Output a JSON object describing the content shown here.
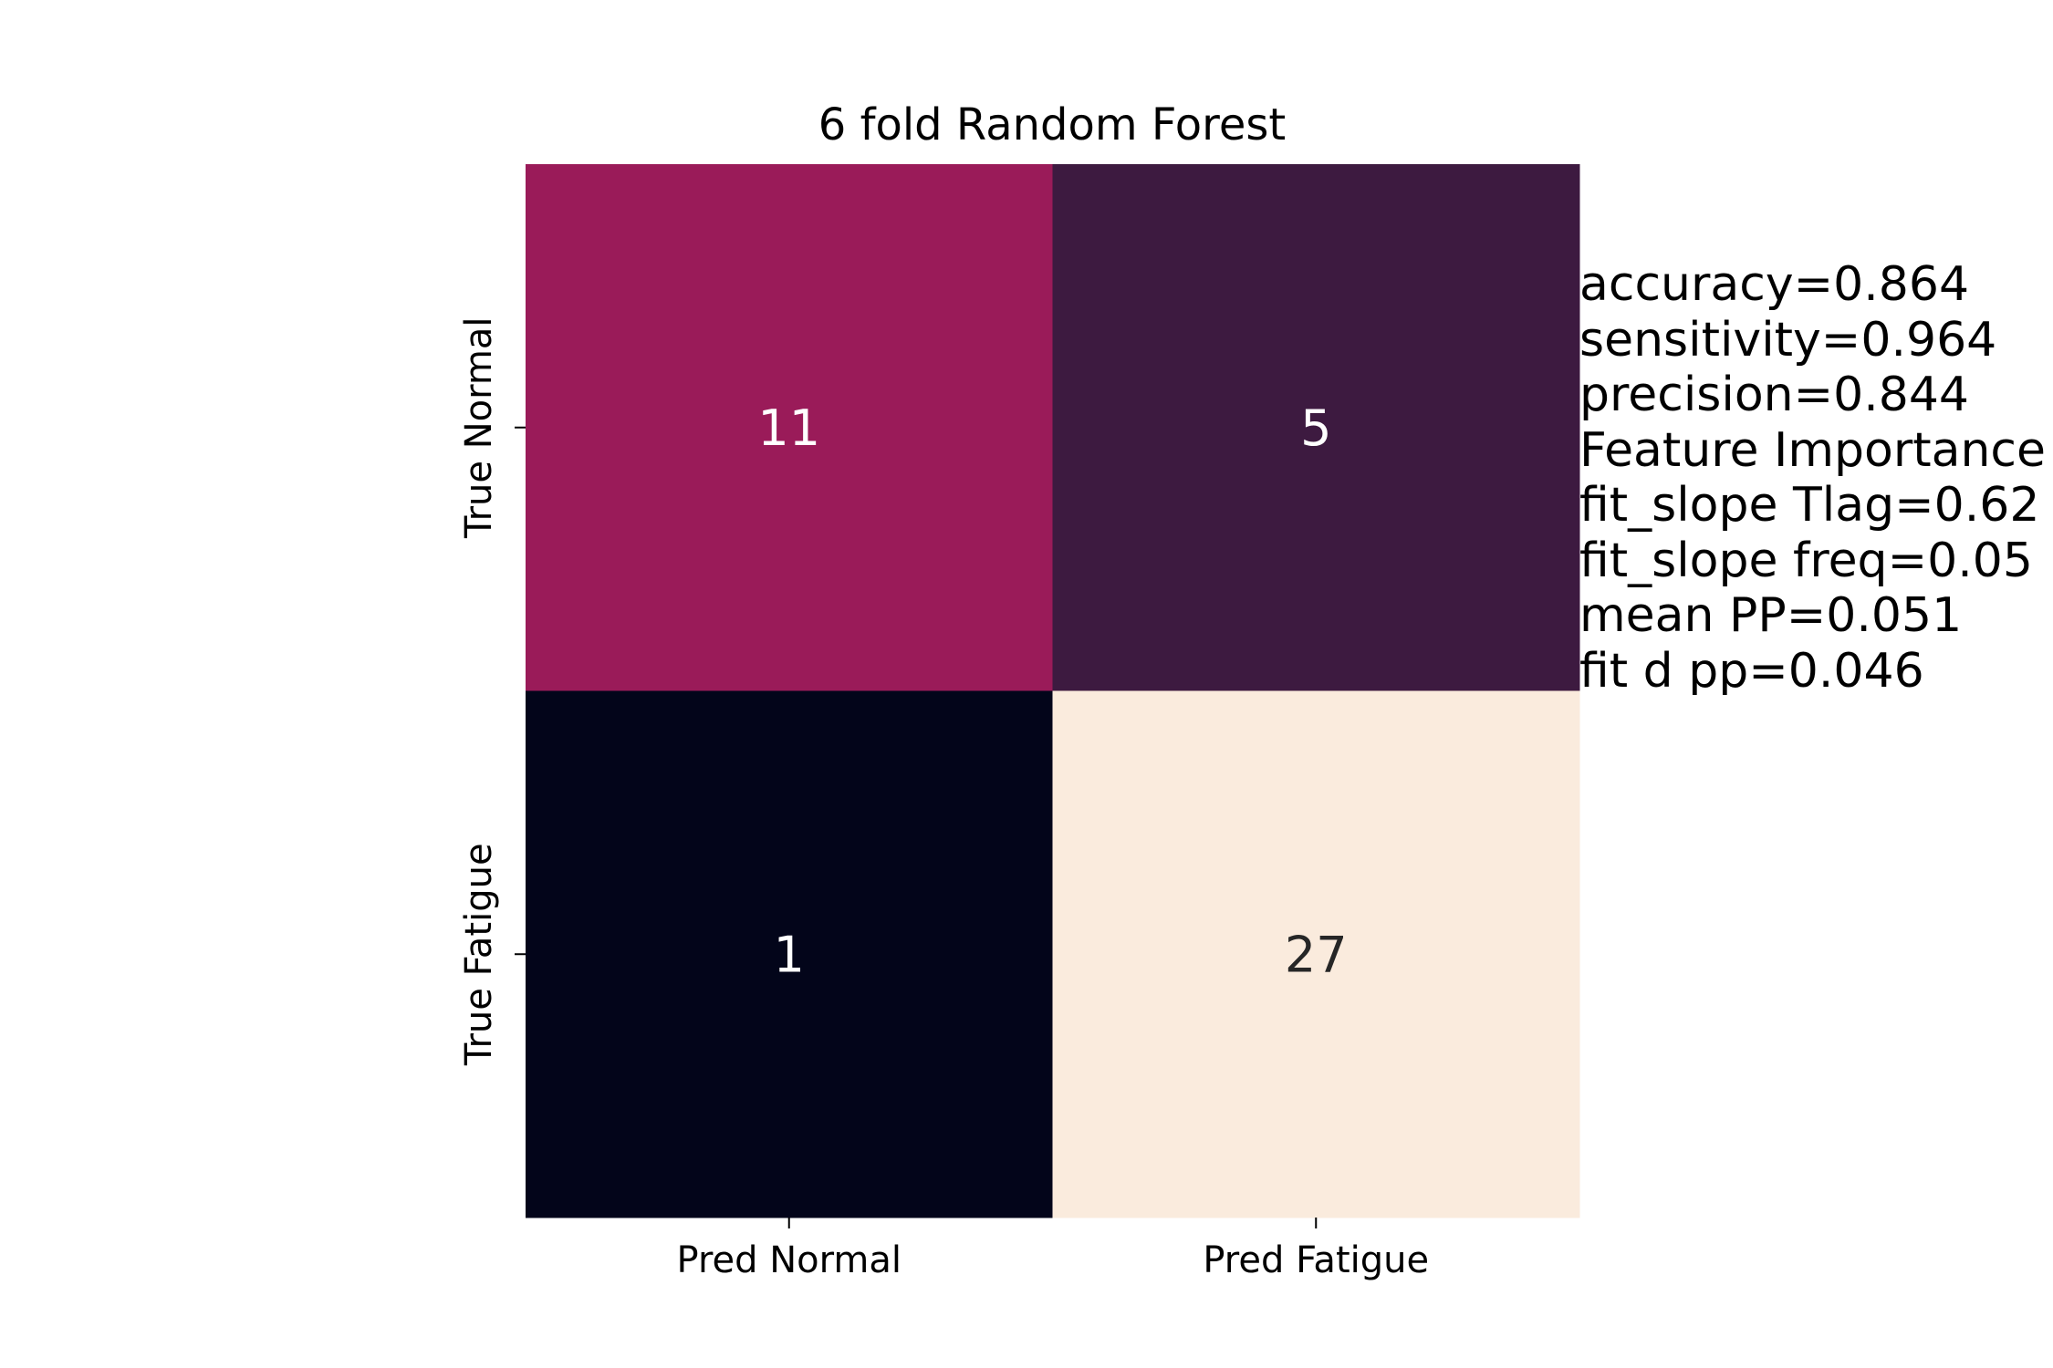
{
  "chart_data": {
    "type": "heatmap",
    "title": "6 fold Random Forest",
    "row_labels": [
      "True Normal",
      "True Fatigue"
    ],
    "col_labels": [
      "Pred Normal",
      "Pred Fatigue"
    ],
    "values": [
      [
        11,
        5
      ],
      [
        1,
        27
      ]
    ],
    "cell_colors": [
      [
        "#9a1b59",
        "#3d1a40"
      ],
      [
        "#03051a",
        "#faebdd"
      ]
    ],
    "text_colors": [
      [
        "#ffffff",
        "#ffffff"
      ],
      [
        "#ffffff",
        "#262626"
      ]
    ],
    "colorbar": false
  },
  "annotation": {
    "lines": [
      "accuracy=0.864",
      "sensitivity=0.964",
      "precision=0.844",
      "Feature Importance",
      "fit_slope Tlag=0.62",
      "fit_slope freq=0.05",
      "mean PP=0.051",
      "fit d pp=0.046"
    ]
  }
}
